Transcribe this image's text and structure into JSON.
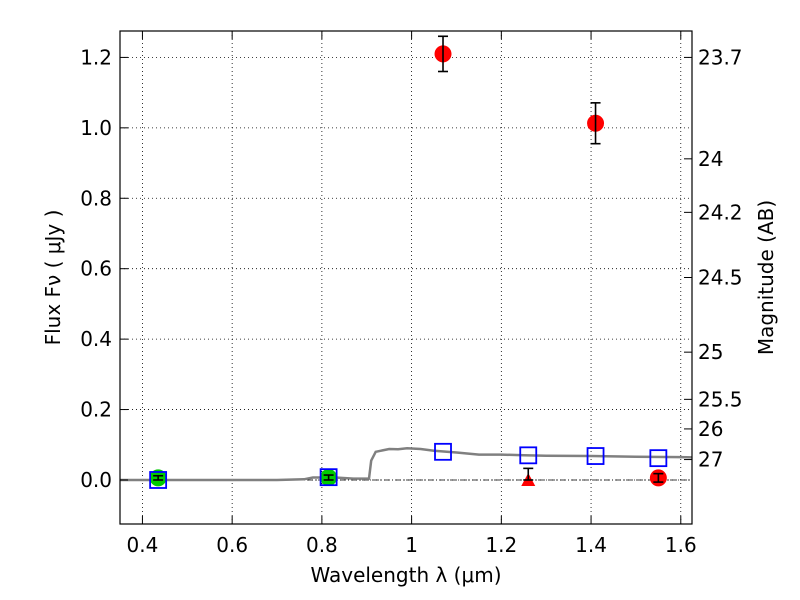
{
  "chart_data": {
    "type": "scatter",
    "title": "",
    "xlabel": "Wavelength  λ (μm)",
    "ylabel_left": "Flux  Fν  ( μJy )",
    "ylabel_right": "Magnitude (AB)",
    "xlim": [
      0.35,
      1.625
    ],
    "ylim": [
      -0.125,
      1.275
    ],
    "xticks": [
      {
        "value": 0.4,
        "label": "0.4"
      },
      {
        "value": 0.6,
        "label": "0.6"
      },
      {
        "value": 0.8,
        "label": "0.8"
      },
      {
        "value": 1.0,
        "label": "1"
      },
      {
        "value": 1.2,
        "label": "1.2"
      },
      {
        "value": 1.4,
        "label": "1.4"
      },
      {
        "value": 1.6,
        "label": "1.6"
      }
    ],
    "yticks": [
      {
        "value": 0.0,
        "label": "0.0"
      },
      {
        "value": 0.2,
        "label": "0.2"
      },
      {
        "value": 0.4,
        "label": "0.4"
      },
      {
        "value": 0.6,
        "label": "0.6"
      },
      {
        "value": 0.8,
        "label": "0.8"
      },
      {
        "value": 1.0,
        "label": "1.0"
      },
      {
        "value": 1.2,
        "label": "1.2"
      }
    ],
    "right_ticks": [
      {
        "flux": 1.2,
        "label": "23.7"
      },
      {
        "flux": 0.912,
        "label": "24"
      },
      {
        "flux": 0.76,
        "label": "24.2"
      },
      {
        "flux": 0.575,
        "label": "24.5"
      },
      {
        "flux": 0.363,
        "label": "25"
      },
      {
        "flux": 0.229,
        "label": "25.5"
      },
      {
        "flux": 0.145,
        "label": "26"
      },
      {
        "flux": 0.058,
        "label": "27"
      }
    ],
    "grid": true,
    "colors": {
      "model": "#808080",
      "green": "#00cc00",
      "red": "#ff0000",
      "blue_squares": "#0000ff",
      "errorbar": "#000000",
      "zero_line": "#000000"
    },
    "series": [
      {
        "kind": "line",
        "points": [
          [
            0.35,
            0.0
          ],
          [
            0.5,
            0.0
          ],
          [
            0.7,
            0.0
          ],
          [
            0.76,
            0.002
          ],
          [
            0.78,
            0.007
          ],
          [
            0.83,
            0.007
          ],
          [
            0.87,
            0.004
          ],
          [
            0.905,
            0.004
          ],
          [
            0.91,
            0.055
          ],
          [
            0.92,
            0.08
          ],
          [
            0.95,
            0.088
          ],
          [
            0.97,
            0.087
          ],
          [
            0.99,
            0.09
          ],
          [
            1.02,
            0.088
          ],
          [
            1.05,
            0.083
          ],
          [
            1.1,
            0.078
          ],
          [
            1.15,
            0.072
          ],
          [
            1.2,
            0.072
          ],
          [
            1.25,
            0.07
          ],
          [
            1.3,
            0.069
          ],
          [
            1.4,
            0.068
          ],
          [
            1.5,
            0.066
          ],
          [
            1.6,
            0.065
          ],
          [
            1.625,
            0.064
          ]
        ]
      },
      {
        "kind": "square",
        "points": [
          [
            0.435,
            0.0
          ],
          [
            0.815,
            0.008
          ],
          [
            1.07,
            0.08
          ],
          [
            1.26,
            0.07
          ],
          [
            1.41,
            0.068
          ],
          [
            1.55,
            0.062
          ]
        ]
      },
      {
        "kind": "circle",
        "color_key": "green",
        "points": [
          {
            "x": 0.435,
            "y": 0.006,
            "err": 0.006
          },
          {
            "x": 0.815,
            "y": 0.007,
            "err": 0.007
          }
        ]
      },
      {
        "kind": "circle",
        "color_key": "red",
        "points": [
          {
            "x": 1.07,
            "y": 1.21,
            "err": 0.05
          },
          {
            "x": 1.41,
            "y": 1.013,
            "err": 0.058
          },
          {
            "x": 1.55,
            "y": 0.006,
            "err": 0.012
          }
        ]
      },
      {
        "kind": "triangle",
        "color_key": "red",
        "points": [
          {
            "x": 1.26,
            "y": 0.0,
            "err_up": 0.033,
            "err_down": 0.0
          }
        ]
      }
    ]
  }
}
